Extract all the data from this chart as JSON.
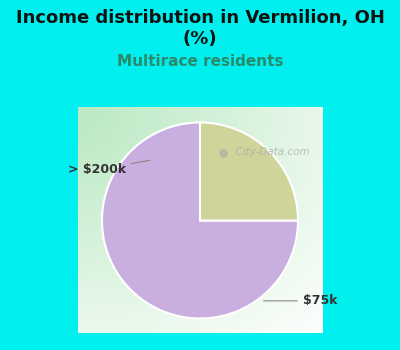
{
  "title_line1": "Income distribution in Vermilion, OH",
  "title_line2": "(%)",
  "subtitle": "Multirace residents",
  "slices": [
    0.75,
    0.25
  ],
  "labels": [
    "$75k",
    "> $200k"
  ],
  "colors": [
    "#c9aee0",
    "#cfd49a"
  ],
  "background_color": "#00efef",
  "title_fontsize": 13,
  "subtitle_fontsize": 11,
  "subtitle_color": "#2a8a6a",
  "watermark": "  City-Data.com",
  "startangle": 90,
  "label_fontsize": 9,
  "label_color": "#333333"
}
